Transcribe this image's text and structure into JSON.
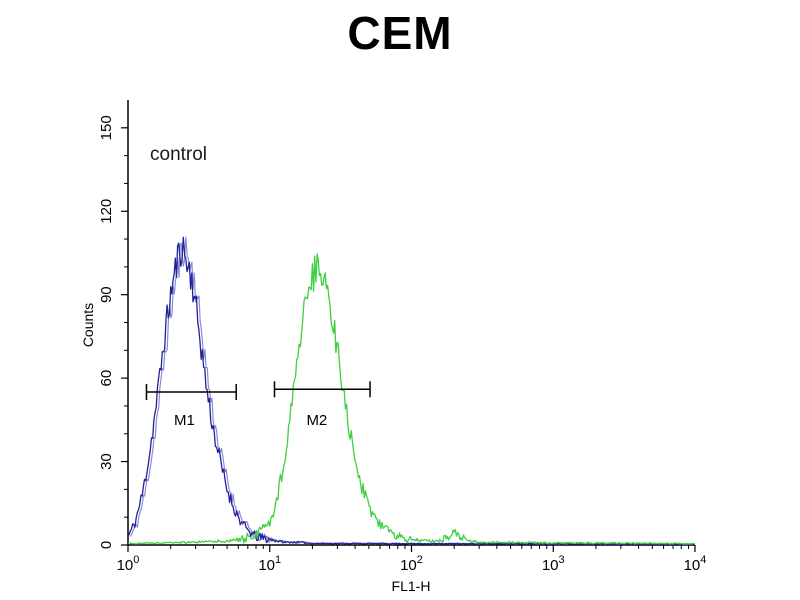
{
  "chart_data": {
    "type": "histogram",
    "title": "CEM",
    "annotation": "control",
    "xlabel": "FL1-H",
    "ylabel": "Counts",
    "x_scale": "log10",
    "x_range": [
      1,
      10000
    ],
    "y_range": [
      0,
      160
    ],
    "y_ticks": [
      0,
      30,
      60,
      90,
      120,
      150
    ],
    "x_tick_exponents": [
      0,
      1,
      2,
      3,
      4
    ],
    "noise_seed": 11,
    "series": [
      {
        "name": "control",
        "color": "#22229a",
        "echo_color": "#8b8bd0",
        "points": [
          [
            1.0,
            3
          ],
          [
            1.12,
            8
          ],
          [
            1.26,
            18
          ],
          [
            1.41,
            32
          ],
          [
            1.58,
            50
          ],
          [
            1.78,
            72
          ],
          [
            2.0,
            90
          ],
          [
            2.24,
            103
          ],
          [
            2.4,
            108
          ],
          [
            2.51,
            104
          ],
          [
            2.82,
            96
          ],
          [
            3.16,
            78
          ],
          [
            3.55,
            58
          ],
          [
            3.98,
            42
          ],
          [
            4.47,
            30
          ],
          [
            5.01,
            20
          ],
          [
            5.62,
            13
          ],
          [
            6.31,
            8
          ],
          [
            7.08,
            5
          ],
          [
            7.94,
            3
          ],
          [
            10.0,
            2
          ],
          [
            12.6,
            1
          ],
          [
            15.8,
            1
          ],
          [
            20.0,
            0.6
          ],
          [
            100.0,
            0.5
          ],
          [
            1000.0,
            0.4
          ],
          [
            10000.0,
            0.3
          ]
        ]
      },
      {
        "name": "",
        "color": "#3fcf3f",
        "points": [
          [
            1.0,
            0.5
          ],
          [
            2.0,
            0.8
          ],
          [
            3.0,
            1.0
          ],
          [
            5.0,
            1.5
          ],
          [
            6.3,
            2.0
          ],
          [
            7.9,
            3.5
          ],
          [
            10.0,
            8
          ],
          [
            11.2,
            16
          ],
          [
            12.6,
            30
          ],
          [
            14.1,
            48
          ],
          [
            15.8,
            68
          ],
          [
            17.8,
            85
          ],
          [
            20.0,
            97
          ],
          [
            22.4,
            100
          ],
          [
            25.1,
            93
          ],
          [
            28.2,
            80
          ],
          [
            31.6,
            62
          ],
          [
            35.5,
            45
          ],
          [
            39.8,
            31
          ],
          [
            44.7,
            21
          ],
          [
            50.1,
            14
          ],
          [
            56.2,
            9
          ],
          [
            63.1,
            6
          ],
          [
            79.4,
            3.5
          ],
          [
            100.0,
            2
          ],
          [
            126.0,
            1.5
          ],
          [
            158.0,
            1.5
          ],
          [
            200.0,
            4.5
          ],
          [
            224.0,
            3
          ],
          [
            251.0,
            1.5
          ],
          [
            316.0,
            1.0
          ],
          [
            1000.0,
            0.8
          ],
          [
            10000.0,
            0.5
          ]
        ]
      }
    ],
    "markers": [
      {
        "label": "M1",
        "x_from": 1.35,
        "x_to": 5.8,
        "y": 55,
        "label_x": 2.5,
        "label_y": 45
      },
      {
        "label": "M2",
        "x_from": 10.8,
        "x_to": 51.0,
        "y": 56,
        "label_x": 21.5,
        "label_y": 45
      }
    ]
  }
}
